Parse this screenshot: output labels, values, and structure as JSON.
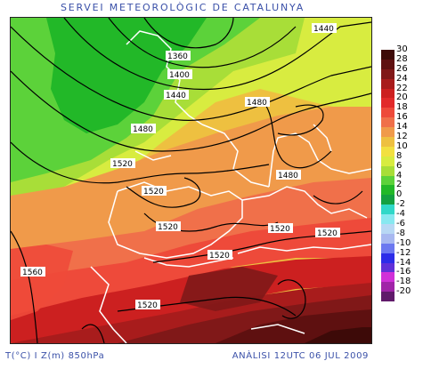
{
  "header": {
    "title": "SERVEI METEOROLÒGIC DE CATALUNYA"
  },
  "footer": {
    "left": "T(°C) I Z(m) 850hPa",
    "right": "ANÀLISI 12UTC 06 JUL 2009"
  },
  "legend": {
    "items": [
      {
        "label": "30",
        "color": "#3d0a08"
      },
      {
        "label": "28",
        "color": "#5e1010"
      },
      {
        "label": "26",
        "color": "#801818"
      },
      {
        "label": "24",
        "color": "#a81c1c"
      },
      {
        "label": "22",
        "color": "#cc2020"
      },
      {
        "label": "20",
        "color": "#e22a2a"
      },
      {
        "label": "18",
        "color": "#ee4a3a"
      },
      {
        "label": "16",
        "color": "#f0704a"
      },
      {
        "label": "14",
        "color": "#f09a4a"
      },
      {
        "label": "12",
        "color": "#eec040"
      },
      {
        "label": "10",
        "color": "#f2e040"
      },
      {
        "label": "8",
        "color": "#d8ec40"
      },
      {
        "label": "6",
        "color": "#a8de38"
      },
      {
        "label": "4",
        "color": "#5cd23a"
      },
      {
        "label": "2",
        "color": "#22b828"
      },
      {
        "label": "0",
        "color": "#14a040"
      },
      {
        "label": "-2",
        "color": "#30d8c8"
      },
      {
        "label": "-4",
        "color": "#88e8f0"
      },
      {
        "label": "-6",
        "color": "#b8d8f4"
      },
      {
        "label": "-8",
        "color": "#a8b8f0"
      },
      {
        "label": "-10",
        "color": "#6c78f0"
      },
      {
        "label": "-12",
        "color": "#2c2ce8"
      },
      {
        "label": "-14",
        "color": "#6030d8"
      },
      {
        "label": "-16",
        "color": "#d030d8"
      },
      {
        "label": "-18",
        "color": "#a024a8"
      },
      {
        "label": "-20",
        "color": "#601a6a"
      }
    ]
  },
  "contour_labels": [
    {
      "id": "1360",
      "text": "1360"
    },
    {
      "id": "1400",
      "text": "1400"
    },
    {
      "id": "1440a",
      "text": "1440"
    },
    {
      "id": "1440b",
      "text": "1440"
    },
    {
      "id": "1480a",
      "text": "1480"
    },
    {
      "id": "1480b",
      "text": "1480"
    },
    {
      "id": "1480c",
      "text": "1480"
    },
    {
      "id": "1520a",
      "text": "1520"
    },
    {
      "id": "1520b",
      "text": "1520"
    },
    {
      "id": "1520c",
      "text": "1520"
    },
    {
      "id": "1520d",
      "text": "1520"
    },
    {
      "id": "1520e",
      "text": "1520"
    },
    {
      "id": "1520f",
      "text": "1520"
    },
    {
      "id": "1520g",
      "text": "1520"
    },
    {
      "id": "1560",
      "text": "1560"
    }
  ]
}
